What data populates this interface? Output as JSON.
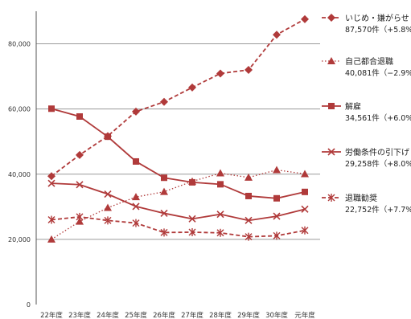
{
  "chart_data": {
    "type": "line",
    "categories": [
      "22年度",
      "23年度",
      "24年度",
      "25年度",
      "26年度",
      "27年度",
      "28年度",
      "29年度",
      "30年度",
      "元年度"
    ],
    "ylim": [
      0,
      90000
    ],
    "yticks": [
      0,
      20000,
      40000,
      60000,
      80000
    ],
    "ytick_labels": [
      "0",
      "20,000",
      "40,000",
      "60,000",
      "80,000"
    ],
    "grid": true,
    "legend_position": "right",
    "series": [
      {
        "name": "いじめ・嫌がらせ",
        "detail": "87,570件（+5.8%）",
        "marker": "diamond",
        "dash": "dashed",
        "color": "#b03a3a",
        "values": [
          39400,
          45900,
          51700,
          59200,
          62200,
          66600,
          70900,
          72000,
          82800,
          87570
        ]
      },
      {
        "name": "自己都合退職",
        "detail": "40,081件（−2.9%）",
        "marker": "triangle",
        "dash": "dotted",
        "color": "#b03a3a",
        "values": [
          20000,
          25500,
          29700,
          33000,
          34600,
          37800,
          40300,
          39000,
          41300,
          40081
        ]
      },
      {
        "name": "解雇",
        "detail": "34,561件（+6.0%）",
        "marker": "square",
        "dash": "solid",
        "color": "#b03a3a",
        "values": [
          60100,
          57700,
          51500,
          43900,
          38900,
          37500,
          36900,
          33300,
          32600,
          34561
        ]
      },
      {
        "name": "労働条件の引下げ",
        "detail": "29,258件（+8.0%）",
        "marker": "x",
        "dash": "solid",
        "color": "#b03a3a",
        "values": [
          37200,
          36800,
          33900,
          30100,
          28000,
          26300,
          27700,
          25800,
          27100,
          29258
        ]
      },
      {
        "name": "退職勧奨",
        "detail": "22,752件（+7.7%）",
        "marker": "asterisk",
        "dash": "dashed",
        "color": "#b03a3a",
        "values": [
          26000,
          26900,
          25800,
          25000,
          22100,
          22200,
          22000,
          20800,
          21100,
          22752
        ]
      }
    ]
  }
}
